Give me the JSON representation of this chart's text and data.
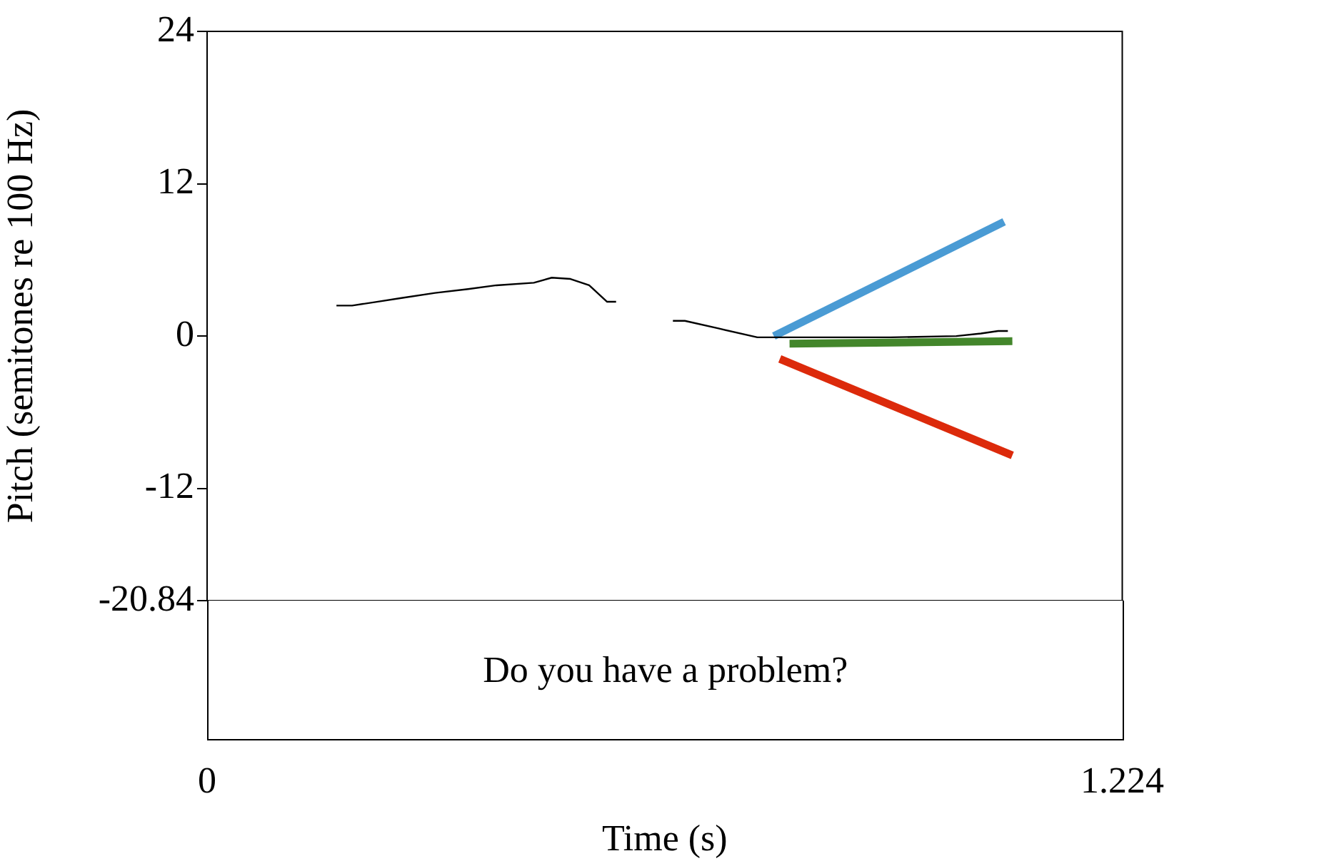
{
  "chart_data": {
    "type": "line",
    "xlabel": "Time (s)",
    "ylabel": "Pitch (semitones re 100 Hz)",
    "xlim": [
      0,
      1.224
    ],
    "xticks": [
      0,
      1.224
    ],
    "ylim": [
      -20.84,
      24
    ],
    "yticks": [
      -20.84,
      -12,
      0,
      12,
      24
    ],
    "grid": false,
    "legend": false,
    "marker": "none",
    "line_style": "solid",
    "series": [
      {
        "color": "#000000",
        "x": [
          0.173,
          0.194,
          0.227,
          0.26,
          0.305,
          0.349,
          0.387,
          0.437,
          0.461,
          0.486,
          0.511,
          0.535,
          0.547,
          0.58,
          0.623,
          0.639,
          0.684,
          0.736,
          0.804,
          0.914,
          1.002,
          1.035,
          1.058,
          1.071
        ],
        "values": [
          2.4,
          2.4,
          2.7,
          3,
          3.4,
          3.7,
          4,
          4.2,
          4.6,
          4.5,
          4,
          2.7,
          2.7,
          null,
          1.2,
          1.2,
          0.6,
          -0.1,
          -0.1,
          -0.1,
          0,
          0.2,
          0.4,
          0.4
        ]
      },
      {
        "color": "#4a9bd4",
        "x": [
          0.758,
          1.066
        ],
        "values": [
          0,
          9
        ]
      },
      {
        "color": "#43862b",
        "x": [
          0.779,
          1.077
        ],
        "values": [
          -0.6,
          -0.4
        ]
      },
      {
        "color": "#dc2a0b",
        "x": [
          0.766,
          1.077
        ],
        "values": [
          -1.8,
          -9.4
        ]
      }
    ],
    "annotations": [
      "Do you have a problem?"
    ]
  }
}
